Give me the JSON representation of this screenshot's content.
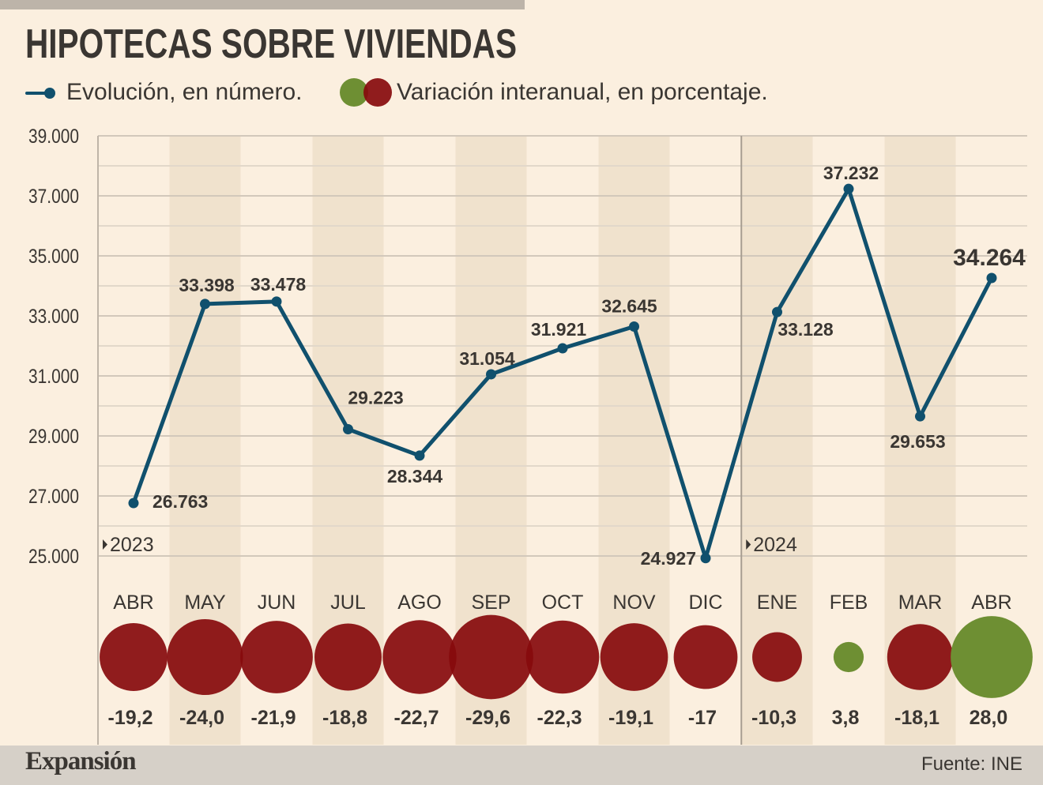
{
  "title": "HIPOTECAS SOBRE VIVIENDAS",
  "legend": {
    "line_label": "Evolución, en número.",
    "bubble_label": "Variación interanual, en porcentaje."
  },
  "source": "Fuente: INE",
  "brand": "Expansión",
  "colors": {
    "line": "#10506d",
    "negative": "#870a0c",
    "positive": "#6e8f33",
    "band": "#f0e2cd",
    "background": "#fbefdf"
  },
  "chart_data": {
    "type": "line",
    "categories": [
      "ABR",
      "MAY",
      "JUN",
      "JUL",
      "AGO",
      "SEP",
      "OCT",
      "NOV",
      "DIC",
      "ENE",
      "FEB",
      "MAR",
      "ABR"
    ],
    "values": [
      26763,
      33398,
      33478,
      29223,
      28344,
      31054,
      31921,
      32645,
      24927,
      33128,
      37232,
      29653,
      34264
    ],
    "value_labels": [
      "26.763",
      "33.398",
      "33.478",
      "29.223",
      "28.344",
      "31.054",
      "31.921",
      "32.645",
      "24.927",
      "33.128",
      "37.232",
      "29.653",
      "34.264"
    ],
    "yoy_change": [
      -19.2,
      -24.0,
      -21.9,
      -18.8,
      -22.7,
      -29.6,
      -22.3,
      -19.1,
      -17,
      -10.3,
      3.8,
      -18.1,
      28.0
    ],
    "yoy_labels": [
      "-19,2",
      "-24,0",
      "-21,9",
      "-18,8",
      "-22,7",
      "-29,6",
      "-22,3",
      "-19,1",
      "-17",
      "-10,3",
      "3,8",
      "-18,1",
      "28,0"
    ],
    "year_markers": [
      {
        "label": "2023",
        "index": 0
      },
      {
        "label": "2024",
        "index": 9
      }
    ],
    "y_ticks": [
      {
        "value": 39000,
        "label": "39.000"
      },
      {
        "value": 37000,
        "label": "37.000"
      },
      {
        "value": 35000,
        "label": "35.000"
      },
      {
        "value": 33000,
        "label": "33.000"
      },
      {
        "value": 31000,
        "label": "31.000"
      },
      {
        "value": 29000,
        "label": "29.000"
      },
      {
        "value": 27000,
        "label": "27.000"
      },
      {
        "value": 25000,
        "label": "25.000"
      }
    ],
    "ylim": [
      25000,
      39000
    ],
    "grid": true
  }
}
